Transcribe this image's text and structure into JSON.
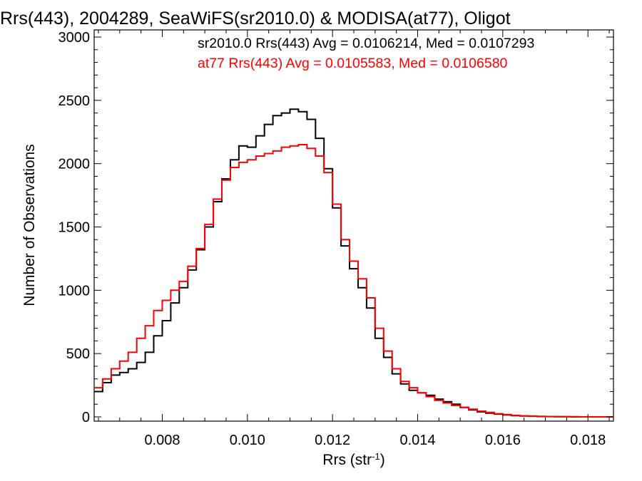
{
  "chart_data": {
    "type": "line",
    "style": "histogram-step",
    "title": "Rrs(443), 2004289, SeaWiFS(sr2010.0) & MODISA(at77), Oligot",
    "xlabel": "Rrs (str",
    "xlabel_sup": "-1",
    "xlabel_close": ")",
    "ylabel": "Number of Observations",
    "xlim": [
      0.0064,
      0.0186
    ],
    "ylim": [
      0,
      3000
    ],
    "x_ticks": [
      0.008,
      0.01,
      0.012,
      0.014,
      0.016,
      0.018
    ],
    "x_tick_labels": [
      "0.008",
      "0.010",
      "0.012",
      "0.014",
      "0.016",
      "0.018"
    ],
    "y_ticks": [
      0,
      500,
      1000,
      1500,
      2000,
      2500,
      3000
    ],
    "y_tick_labels": [
      "0",
      "500",
      "1000",
      "1500",
      "2000",
      "2500",
      "3000"
    ],
    "grid": false,
    "legend_position": "top-right",
    "series": [
      {
        "name": "sr2010.0 Rrs(443) Avg = 0.0106214, Med = 0.0107293",
        "color": "#000000",
        "x": [
          0.0064,
          0.0066,
          0.0068,
          0.007,
          0.0072,
          0.0074,
          0.0076,
          0.0078,
          0.008,
          0.0082,
          0.0084,
          0.0086,
          0.0088,
          0.009,
          0.0092,
          0.0094,
          0.0096,
          0.0098,
          0.01,
          0.0102,
          0.0104,
          0.0106,
          0.0108,
          0.011,
          0.0112,
          0.0114,
          0.0116,
          0.0118,
          0.012,
          0.0122,
          0.0124,
          0.0126,
          0.0128,
          0.013,
          0.0132,
          0.0134,
          0.0136,
          0.0138,
          0.014,
          0.0142,
          0.0144,
          0.0146,
          0.0148,
          0.015,
          0.0152,
          0.0154,
          0.0156,
          0.0158,
          0.016,
          0.0162,
          0.0164,
          0.0166,
          0.0168,
          0.017,
          0.0172,
          0.0174,
          0.0176,
          0.0178,
          0.018,
          0.0182,
          0.0184,
          0.0186
        ],
        "values": [
          200,
          270,
          330,
          350,
          380,
          430,
          510,
          640,
          760,
          900,
          1020,
          1160,
          1320,
          1500,
          1700,
          1880,
          2030,
          2140,
          2130,
          2220,
          2310,
          2380,
          2400,
          2430,
          2410,
          2350,
          2200,
          1960,
          1650,
          1350,
          1170,
          1020,
          860,
          620,
          470,
          340,
          260,
          210,
          190,
          170,
          140,
          120,
          100,
          75,
          55,
          40,
          30,
          22,
          15,
          10,
          7,
          5,
          3,
          2,
          1,
          1,
          0,
          0,
          0,
          0,
          0,
          0
        ]
      },
      {
        "name": "at77 Rrs(443) Avg = 0.0105583, Med = 0.0106580",
        "color": "#ff0000",
        "x": [
          0.0064,
          0.0066,
          0.0068,
          0.007,
          0.0072,
          0.0074,
          0.0076,
          0.0078,
          0.008,
          0.0082,
          0.0084,
          0.0086,
          0.0088,
          0.009,
          0.0092,
          0.0094,
          0.0096,
          0.0098,
          0.01,
          0.0102,
          0.0104,
          0.0106,
          0.0108,
          0.011,
          0.0112,
          0.0114,
          0.0116,
          0.0118,
          0.012,
          0.0122,
          0.0124,
          0.0126,
          0.0128,
          0.013,
          0.0132,
          0.0134,
          0.0136,
          0.0138,
          0.014,
          0.0142,
          0.0144,
          0.0146,
          0.0148,
          0.015,
          0.0152,
          0.0154,
          0.0156,
          0.0158,
          0.016,
          0.0162,
          0.0164,
          0.0166,
          0.0168,
          0.017,
          0.0172,
          0.0174,
          0.0176,
          0.0178,
          0.018,
          0.0182,
          0.0184,
          0.0186
        ],
        "values": [
          230,
          300,
          380,
          440,
          510,
          620,
          720,
          840,
          920,
          1000,
          1070,
          1190,
          1330,
          1520,
          1720,
          1870,
          1970,
          2010,
          2030,
          2060,
          2080,
          2100,
          2130,
          2140,
          2150,
          2120,
          2060,
          1930,
          1680,
          1400,
          1230,
          1090,
          940,
          700,
          520,
          380,
          280,
          230,
          190,
          160,
          130,
          110,
          90,
          75,
          60,
          45,
          35,
          25,
          18,
          12,
          8,
          6,
          4,
          3,
          2,
          1,
          1,
          0,
          0,
          0,
          0,
          0
        ]
      }
    ]
  }
}
